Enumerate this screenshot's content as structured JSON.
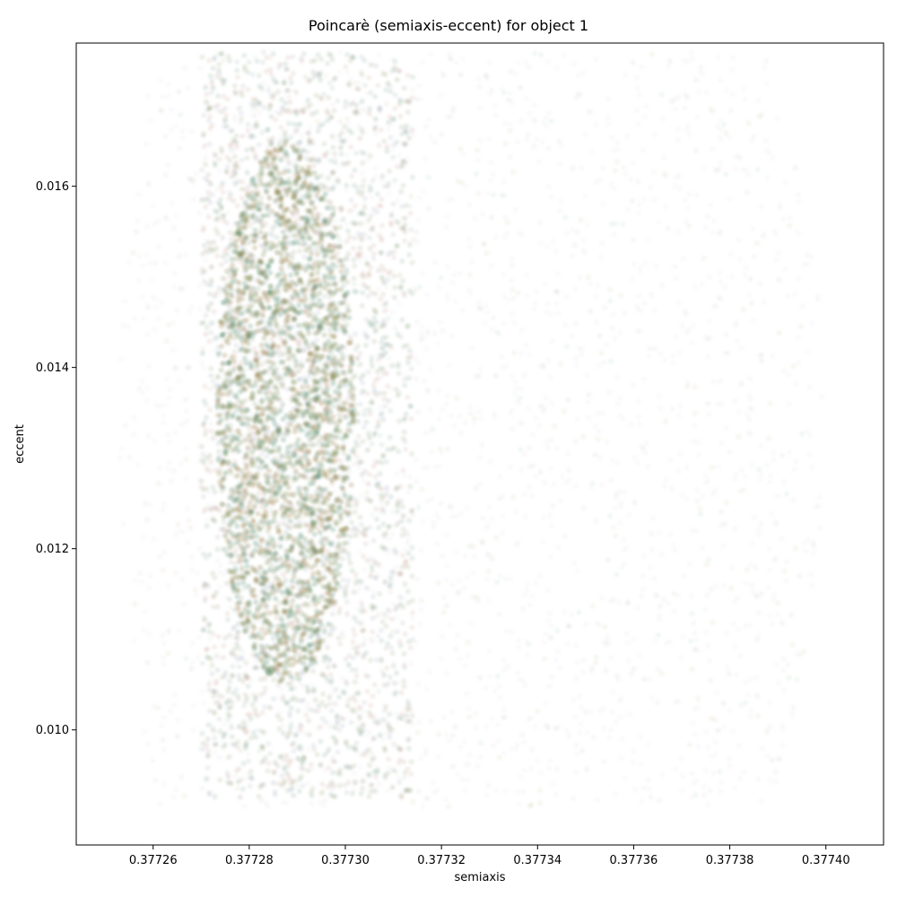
{
  "chart_data": {
    "type": "scatter",
    "title": "Poincarè (semiaxis-eccent) for object 1",
    "xlabel": "semiaxis",
    "ylabel": "eccent",
    "xlim": [
      0.377244,
      0.377412
    ],
    "ylim": [
      0.00873,
      0.01758
    ],
    "xticks": [
      0.37726,
      0.37728,
      0.3773,
      0.37732,
      0.37734,
      0.37736,
      0.37738,
      0.3774
    ],
    "xtick_labels": [
      "0.37726",
      "0.37728",
      "0.37730",
      "0.37732",
      "0.37734",
      "0.37736",
      "0.37738",
      "0.37740"
    ],
    "yticks": [
      0.01,
      0.012,
      0.014,
      0.016
    ],
    "ytick_labels": [
      "0.010",
      "0.012",
      "0.014",
      "0.016"
    ],
    "grid": false,
    "marker_alpha": "very low",
    "point_colors": [
      "#b07a6a",
      "#7a8a9a",
      "#6a7a3a",
      "#3a7a5a",
      "#8a6a2a",
      "#9a9aa8"
    ],
    "regions": [
      {
        "name": "sparse-halo",
        "x_range": [
          0.377252,
          0.377404
        ],
        "y_range": [
          0.00915,
          0.01748
        ],
        "density": "low"
      },
      {
        "name": "core-band",
        "x_range": [
          0.37727,
          0.377314
        ],
        "y_range": [
          0.00925,
          0.01748
        ],
        "density": "high"
      },
      {
        "name": "dense-core",
        "x_range": [
          0.377275,
          0.3773
        ],
        "y_range": [
          0.0105,
          0.0165
        ],
        "density": "very high"
      }
    ]
  }
}
